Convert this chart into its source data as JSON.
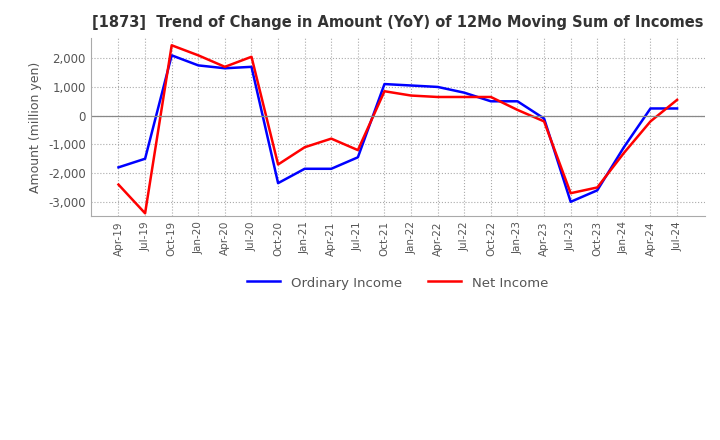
{
  "title": "[1873]  Trend of Change in Amount (YoY) of 12Mo Moving Sum of Incomes",
  "ylabel": "Amount (million yen)",
  "ylim": [
    -3500,
    2700
  ],
  "yticks": [
    -3000,
    -2000,
    -1000,
    0,
    1000,
    2000
  ],
  "background_color": "#ffffff",
  "grid_color": "#aaaaaa",
  "ordinary_income_color": "#0000ff",
  "net_income_color": "#ff0000",
  "x_labels": [
    "Apr-19",
    "Jul-19",
    "Oct-19",
    "Jan-20",
    "Apr-20",
    "Jul-20",
    "Oct-20",
    "Jan-21",
    "Apr-21",
    "Jul-21",
    "Oct-21",
    "Jan-22",
    "Apr-22",
    "Jul-22",
    "Oct-22",
    "Jan-23",
    "Apr-23",
    "Jul-23",
    "Oct-23",
    "Jan-24",
    "Apr-24",
    "Jul-24"
  ],
  "ordinary_income": [
    -1800,
    -1500,
    2100,
    1750,
    1650,
    1700,
    -2350,
    -1850,
    -1850,
    -1450,
    1100,
    1050,
    1000,
    800,
    500,
    500,
    -100,
    -3000,
    -2600,
    -1100,
    250,
    250
  ],
  "net_income": [
    -2400,
    -3400,
    2450,
    2100,
    1700,
    2050,
    -1700,
    -1100,
    -800,
    -1200,
    850,
    700,
    650,
    650,
    650,
    200,
    -200,
    -2700,
    -2500,
    -1300,
    -200,
    550
  ]
}
